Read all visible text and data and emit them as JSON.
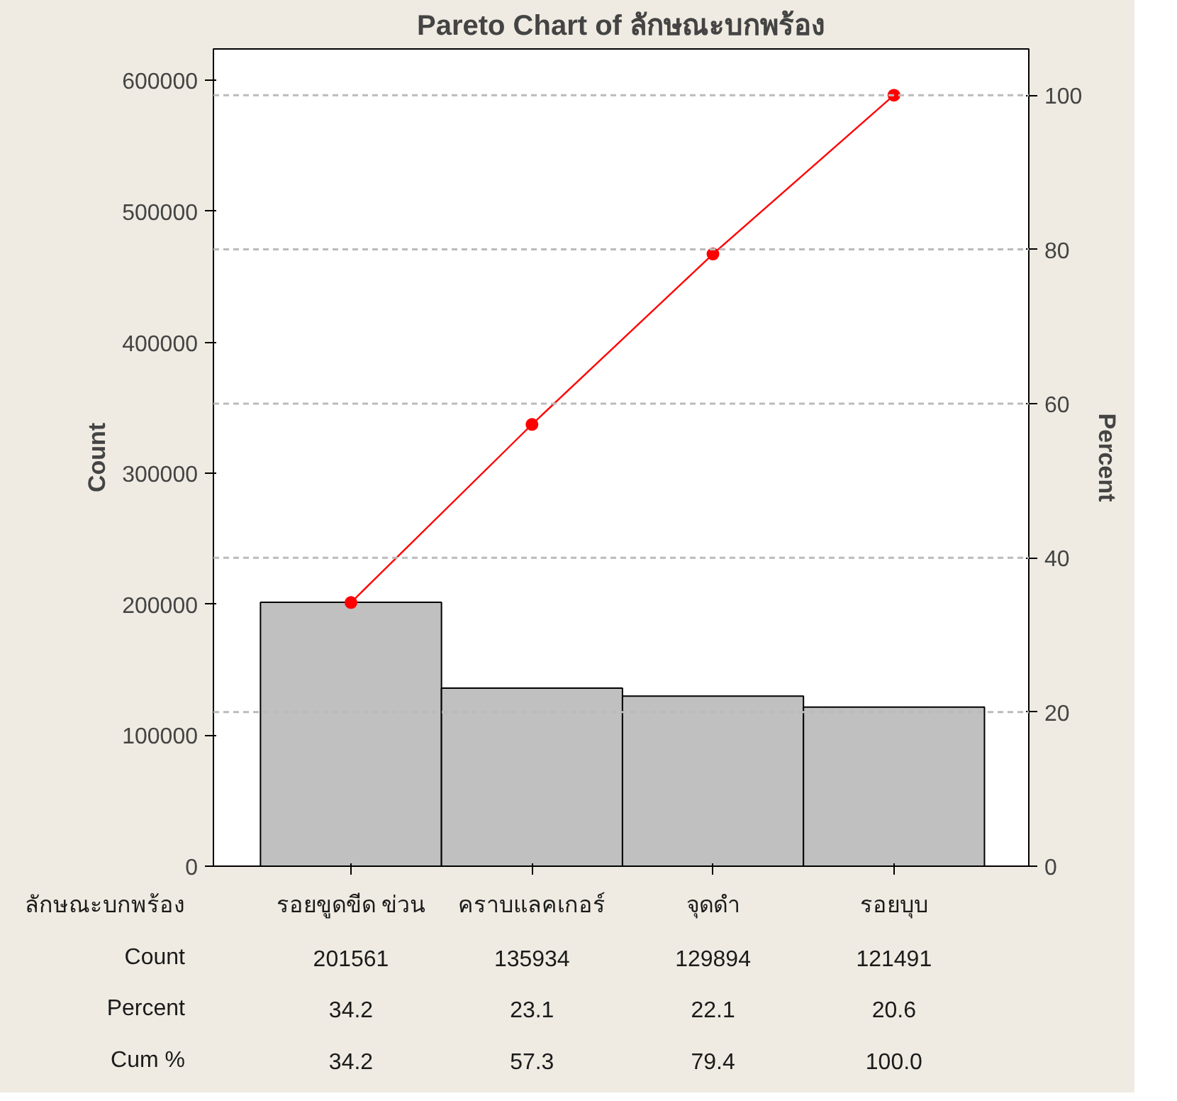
{
  "chart_data": {
    "type": "bar",
    "title": "Pareto Chart of ลักษณะบกพร้อง",
    "xlabel": "ลักษณะบกพร้อง",
    "ylabel": "Count",
    "y2label": "Percent",
    "categories": [
      "รอยขูดขีด ข่วน",
      "คราบแลคเกอร์",
      "จุดดำ",
      "รอยบุบ"
    ],
    "series": [
      {
        "color": "#c0c0c0",
        "values": [
          201561,
          135934,
          129894,
          121491
        ],
        "value_labels": [
          "201561",
          "135934",
          "129894",
          "121491"
        ]
      },
      {
        "type": "line",
        "axis": "y2",
        "color": "#ff0000",
        "marker": "circle",
        "values": [
          34.2,
          57.3,
          79.4,
          100.0
        ],
        "value_labels": [
          "34.2",
          "57.3",
          "79.4",
          "100.0"
        ]
      }
    ],
    "annotations": [
      "Count",
      "Percent",
      "Cum %",
      "34.2",
      "23.1",
      "22.1",
      "20.6"
    ],
    "ylim": [
      0,
      624000
    ],
    "yticks": [
      0,
      100000,
      200000,
      300000,
      400000,
      500000,
      600000
    ],
    "y2lim": [
      0,
      106
    ],
    "y2ticks": [
      0,
      20,
      40,
      60,
      80,
      100
    ],
    "grid": "y2"
  }
}
